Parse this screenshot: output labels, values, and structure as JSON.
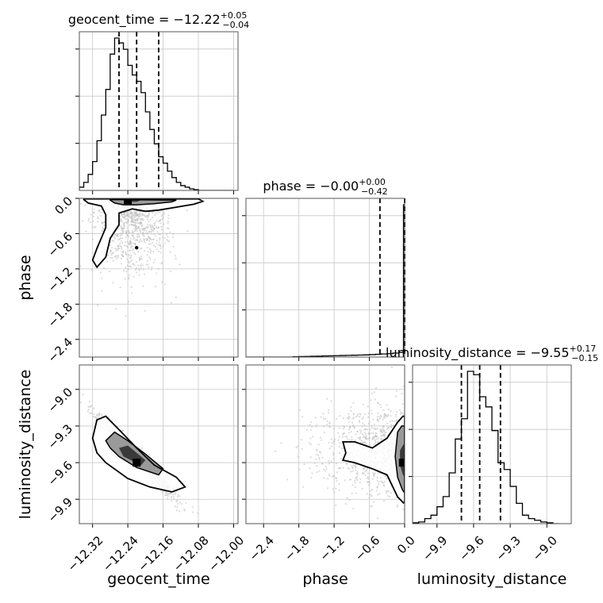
{
  "chart_data": {
    "type": "corner",
    "grid": true,
    "parameters": [
      "geocent_time",
      "phase",
      "luminosity_distance"
    ],
    "panels": [
      {
        "kind": "hist1d",
        "row": 0,
        "col": 0,
        "title_name": "geocent_time",
        "title_value": "−12.22",
        "title_upper": "+0.05",
        "title_lower": "−0.04",
        "xlim": [
          -12.35,
          -11.99
        ],
        "bin_edges": [
          -12.35,
          -12.34,
          -12.33,
          -12.32,
          -12.31,
          -12.3,
          -12.29,
          -12.28,
          -12.27,
          -12.26,
          -12.25,
          -12.24,
          -12.23,
          -12.22,
          -12.21,
          -12.2,
          -12.19,
          -12.18,
          -12.17,
          -12.16,
          -12.15,
          -12.14,
          -12.13,
          -12.12,
          -12.11,
          -12.1,
          -12.09,
          -12.08,
          -12.07,
          -12.06,
          -12.05,
          -12.04,
          -12.03,
          -12.02,
          -12.01,
          -12.0
        ],
        "counts": [
          2,
          5,
          10,
          18,
          31,
          47,
          63,
          85,
          95,
          92,
          88,
          78,
          72,
          68,
          61,
          49,
          38,
          29,
          21,
          17,
          12,
          8,
          5,
          3,
          2,
          1,
          0.5,
          0,
          0,
          0,
          0,
          0,
          0,
          0,
          0
        ],
        "quantiles": [
          -12.26,
          -12.22,
          -12.17
        ]
      },
      {
        "kind": "hist1d",
        "row": 1,
        "col": 1,
        "title_name": "phase",
        "title_value": "−0.00",
        "title_upper": "+0.00",
        "title_lower": "−0.42",
        "xlim": [
          -2.7,
          0.0
        ],
        "bin_edges": [
          -2.7,
          -2.6,
          -2.5,
          -2.4,
          -2.3,
          -2.2,
          -2.1,
          -2.0,
          -1.9,
          -1.8,
          -1.7,
          -1.6,
          -1.5,
          -1.4,
          -1.3,
          -1.2,
          -1.1,
          -1.0,
          -0.9,
          -0.8,
          -0.7,
          -0.6,
          -0.5,
          -0.4,
          -0.3,
          -0.2,
          -0.1,
          -0.02,
          0.0
        ],
        "counts": [
          0,
          0,
          0,
          0,
          0,
          0,
          0,
          0,
          0.2,
          0.3,
          0.4,
          0.5,
          0.6,
          0.7,
          0.8,
          0.9,
          1.0,
          1.1,
          1.2,
          1.3,
          1.4,
          1.6,
          1.8,
          2.0,
          2.2,
          2.6,
          3.0,
          100
        ],
        "quantiles": [
          -0.42,
          0.0,
          0.0
        ]
      },
      {
        "kind": "hist1d",
        "row": 2,
        "col": 2,
        "title_name": "luminosity_distance",
        "title_value": "−9.55",
        "title_upper": "+0.17",
        "title_lower": "−0.15",
        "xlim": [
          -10.1,
          -8.8
        ],
        "bin_edges": [
          -10.1,
          -10.05,
          -10.0,
          -9.95,
          -9.9,
          -9.85,
          -9.8,
          -9.75,
          -9.7,
          -9.65,
          -9.6,
          -9.55,
          -9.5,
          -9.45,
          -9.4,
          -9.35,
          -9.3,
          -9.25,
          -9.2,
          -9.15,
          -9.1,
          -9.05,
          -9.0,
          -8.95,
          -8.9
        ],
        "counts": [
          0.5,
          1,
          3,
          5,
          10,
          16,
          30,
          50,
          62,
          90,
          88,
          75,
          69,
          55,
          36,
          32,
          22,
          12,
          5,
          3,
          2,
          1,
          0.5,
          0
        ],
        "quantiles": [
          -9.7,
          -9.55,
          -9.38
        ]
      },
      {
        "kind": "hist2d",
        "row": 1,
        "col": 0,
        "x": "geocent_time",
        "y": "phase",
        "xlim": [
          -12.35,
          -11.99
        ],
        "ylim": [
          -2.7,
          0.0
        ],
        "scatter_center": [
          -12.23,
          -0.9
        ],
        "scatter_spread": [
          0.04,
          0.55
        ],
        "density_peak": [
          -12.24,
          -0.03
        ],
        "outer_contour": [
          [
            -12.34,
            -0.02
          ],
          [
            -12.33,
            -0.08
          ],
          [
            -12.3,
            -0.13
          ],
          [
            -12.29,
            -0.28
          ],
          [
            -12.29,
            -0.5
          ],
          [
            -12.31,
            -0.85
          ],
          [
            -12.32,
            -1.05
          ],
          [
            -12.31,
            -1.17
          ],
          [
            -12.29,
            -1.0
          ],
          [
            -12.28,
            -0.68
          ],
          [
            -12.26,
            -0.45
          ],
          [
            -12.26,
            -0.25
          ],
          [
            -12.23,
            -0.18
          ],
          [
            -12.2,
            -0.22
          ],
          [
            -12.17,
            -0.2
          ],
          [
            -12.13,
            -0.15
          ],
          [
            -12.09,
            -0.1
          ],
          [
            -12.07,
            -0.05
          ],
          [
            -12.08,
            -0.01
          ],
          [
            -12.34,
            -0.01
          ]
        ],
        "mid_contour": [
          [
            -12.28,
            -0.03
          ],
          [
            -12.27,
            -0.08
          ],
          [
            -12.25,
            -0.11
          ],
          [
            -12.22,
            -0.11
          ],
          [
            -12.18,
            -0.09
          ],
          [
            -12.14,
            -0.06
          ],
          [
            -12.13,
            -0.03
          ],
          [
            -12.28,
            -0.02
          ]
        ],
        "inner_contour": [
          [
            -12.25,
            -0.03
          ],
          [
            -12.24,
            -0.06
          ],
          [
            -12.22,
            -0.06
          ],
          [
            -12.21,
            -0.03
          ]
        ],
        "marker": [
          -12.22,
          -0.84
        ]
      },
      {
        "kind": "hist2d",
        "row": 2,
        "col": 0,
        "x": "geocent_time",
        "y": "luminosity_distance",
        "xlim": [
          -12.35,
          -11.99
        ],
        "ylim": [
          -10.1,
          -8.8
        ],
        "scatter_center": [
          -12.22,
          -9.55
        ],
        "scatter_spread": [
          0.045,
          0.17
        ],
        "density_peak": [
          -12.22,
          -9.6
        ],
        "outer_contour": [
          [
            -12.32,
            -9.4
          ],
          [
            -12.31,
            -9.25
          ],
          [
            -12.29,
            -9.22
          ],
          [
            -12.26,
            -9.33
          ],
          [
            -12.22,
            -9.48
          ],
          [
            -12.18,
            -9.62
          ],
          [
            -12.13,
            -9.72
          ],
          [
            -12.11,
            -9.8
          ],
          [
            -12.14,
            -9.84
          ],
          [
            -12.19,
            -9.8
          ],
          [
            -12.24,
            -9.73
          ],
          [
            -12.29,
            -9.6
          ],
          [
            -12.31,
            -9.52
          ]
        ],
        "mid_contour": [
          [
            -12.29,
            -9.42
          ],
          [
            -12.27,
            -9.35
          ],
          [
            -12.24,
            -9.42
          ],
          [
            -12.2,
            -9.53
          ],
          [
            -12.16,
            -9.65
          ],
          [
            -12.17,
            -9.7
          ],
          [
            -12.22,
            -9.64
          ],
          [
            -12.26,
            -9.55
          ],
          [
            -12.28,
            -9.48
          ]
        ],
        "inner_contour": [
          [
            -12.26,
            -9.48
          ],
          [
            -12.24,
            -9.46
          ],
          [
            -12.2,
            -9.58
          ],
          [
            -12.21,
            -9.62
          ],
          [
            -12.25,
            -9.55
          ]
        ],
        "marker": null
      },
      {
        "kind": "hist2d",
        "row": 2,
        "col": 1,
        "x": "phase",
        "y": "luminosity_distance",
        "xlim": [
          -2.7,
          0.0
        ],
        "ylim": [
          -10.1,
          -8.8
        ],
        "scatter_center": [
          -0.6,
          -9.5
        ],
        "scatter_spread": [
          0.6,
          0.18
        ],
        "density_peak": [
          -0.03,
          -9.6
        ],
        "outer_contour": [
          [
            -1.05,
            -9.43
          ],
          [
            -0.85,
            -9.43
          ],
          [
            -0.55,
            -9.48
          ],
          [
            -0.3,
            -9.4
          ],
          [
            -0.12,
            -9.27
          ],
          [
            -0.03,
            -9.22
          ],
          [
            -0.0,
            -9.22
          ],
          [
            -0.0,
            -9.92
          ],
          [
            -0.02,
            -9.93
          ],
          [
            -0.12,
            -9.88
          ],
          [
            -0.3,
            -9.7
          ],
          [
            -0.55,
            -9.65
          ],
          [
            -0.85,
            -9.6
          ],
          [
            -1.05,
            -9.58
          ],
          [
            -1.0,
            -9.52
          ]
        ],
        "mid_contour": [
          [
            -0.12,
            -9.35
          ],
          [
            -0.05,
            -9.3
          ],
          [
            -0.0,
            -9.3
          ],
          [
            -0.0,
            -9.85
          ],
          [
            -0.04,
            -9.82
          ],
          [
            -0.12,
            -9.72
          ],
          [
            -0.16,
            -9.55
          ]
        ],
        "inner_contour": [
          [
            -0.08,
            -9.5
          ],
          [
            -0.02,
            -9.45
          ],
          [
            -0.0,
            -9.45
          ],
          [
            -0.0,
            -9.72
          ],
          [
            -0.03,
            -9.7
          ],
          [
            -0.08,
            -9.62
          ]
        ],
        "marker": null
      }
    ],
    "xticks": [
      {
        "col": 0,
        "values": [
          -12.32,
          -12.24,
          -12.16,
          -12.08,
          -12.0
        ],
        "labels": [
          "−12.32",
          "−12.24",
          "−12.16",
          "−12.08",
          "−12.00"
        ]
      },
      {
        "col": 1,
        "values": [
          -2.4,
          -1.8,
          -1.2,
          -0.6,
          0.0
        ],
        "labels": [
          "−2.4",
          "−1.8",
          "−1.2",
          "−0.6",
          "0.0"
        ]
      },
      {
        "col": 2,
        "values": [
          -9.9,
          -9.6,
          -9.3,
          -9.0
        ],
        "labels": [
          "−9.9",
          "−9.6",
          "−9.3",
          "−9.0"
        ]
      }
    ],
    "yticks": [
      {
        "row": 1,
        "values": [
          0.0,
          -0.6,
          -1.2,
          -1.8,
          -2.4
        ],
        "labels": [
          "0.0",
          "−0.6",
          "−1.2",
          "−1.8",
          "−2.4"
        ]
      },
      {
        "row": 2,
        "values": [
          -9.0,
          -9.3,
          -9.6,
          -9.9
        ],
        "labels": [
          "−9.0",
          "−9.3",
          "−9.6",
          "−9.9"
        ]
      }
    ],
    "xlabels": [
      "geocent_time",
      "phase",
      "luminosity_distance"
    ],
    "ylabels": [
      {
        "row": 1,
        "text": "phase"
      },
      {
        "row": 2,
        "text": "luminosity_distance"
      }
    ]
  }
}
